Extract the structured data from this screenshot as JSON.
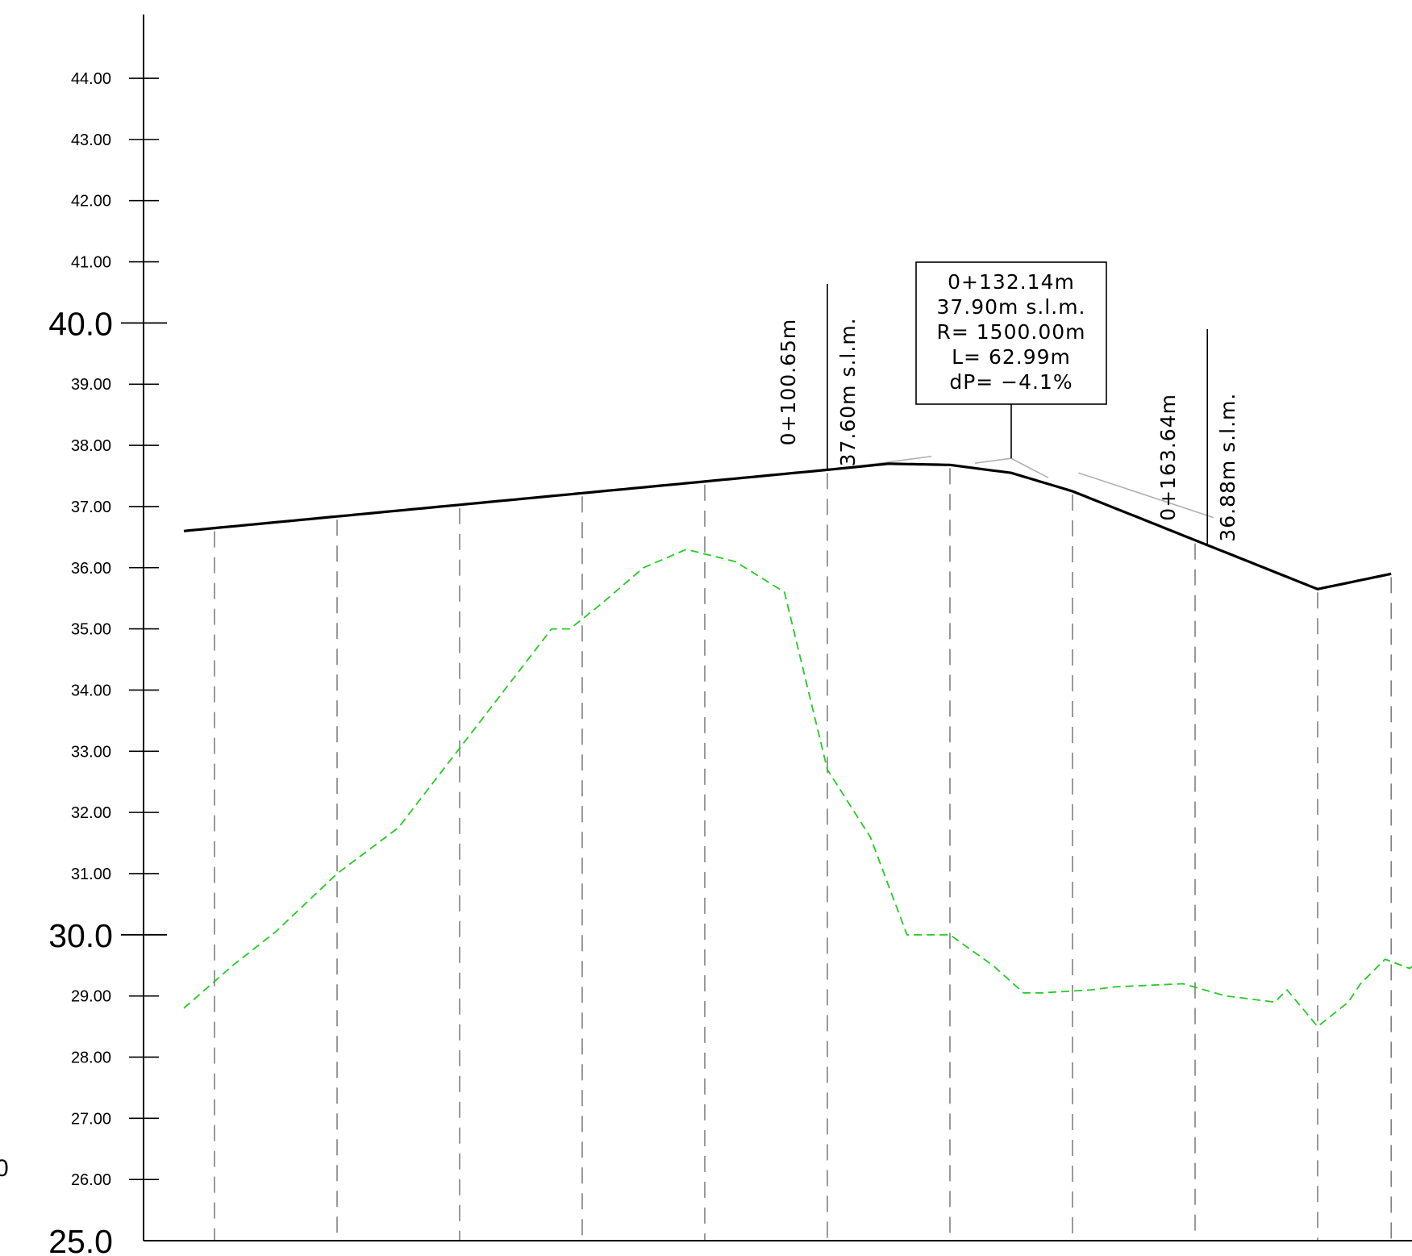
{
  "chart_data": {
    "type": "line",
    "title": "",
    "xlabel": "",
    "ylabel": "",
    "ylim": [
      25.0,
      45.0
    ],
    "xlim": [
      0,
      215
    ],
    "y_ticks_minor": [
      "44.00",
      "43.00",
      "42.00",
      "41.00",
      "39.00",
      "38.00",
      "37.00",
      "36.00",
      "35.00",
      "34.00",
      "33.00",
      "32.00",
      "31.00",
      "29.00",
      "28.00",
      "27.00",
      "26.00"
    ],
    "y_ticks_major": [
      "40.0",
      "30.0",
      "25.0"
    ],
    "edge_label": "0",
    "stations": [
      5,
      25,
      45,
      65,
      85,
      105,
      125,
      145,
      165,
      185,
      197
    ],
    "grid": "vertical dashed at stations",
    "series": [
      {
        "key": "design_profile",
        "color": "#000000",
        "style": "solid",
        "x": [
          0,
          105,
          115,
          125,
          135,
          145,
          155,
          165,
          175,
          185,
          197
        ],
        "y": [
          36.6,
          37.6,
          37.7,
          37.68,
          37.55,
          37.25,
          36.85,
          36.45,
          36.05,
          35.65,
          35.9
        ]
      },
      {
        "key": "terrain",
        "color": "#22cc22",
        "style": "dashed",
        "x": [
          0,
          8,
          15,
          25,
          35,
          45,
          55,
          60,
          63,
          68,
          75,
          82,
          90,
          98,
          105,
          112,
          118,
          125,
          132,
          137,
          140,
          148,
          152,
          163,
          170,
          178,
          180,
          185,
          190,
          192,
          196,
          200,
          205,
          212
        ],
        "y": [
          28.8,
          29.5,
          30.05,
          31.0,
          31.75,
          33.05,
          34.35,
          35.0,
          35.0,
          35.4,
          36.0,
          36.3,
          36.1,
          35.6,
          32.7,
          31.6,
          30.0,
          30.0,
          29.5,
          29.05,
          29.05,
          29.1,
          29.15,
          29.2,
          29.0,
          28.9,
          29.1,
          28.5,
          28.9,
          29.2,
          29.6,
          29.45,
          29.8,
          30.0
        ]
      }
    ],
    "annotations": [
      {
        "x": 105,
        "y": 37.6,
        "station": "0+100.65m",
        "elevation": "37.60m  s.l.m."
      },
      {
        "x": 167,
        "y": 36.88,
        "station": "0+163.64m",
        "elevation": "36.88m  s.l.m."
      }
    ],
    "curve_box": {
      "x": 135,
      "lines": [
        "0+132.14m",
        "37.90m  s.l.m.",
        "R=  1500.00m",
        "L=  62.99m",
        "dP=  −4.1%"
      ]
    }
  }
}
